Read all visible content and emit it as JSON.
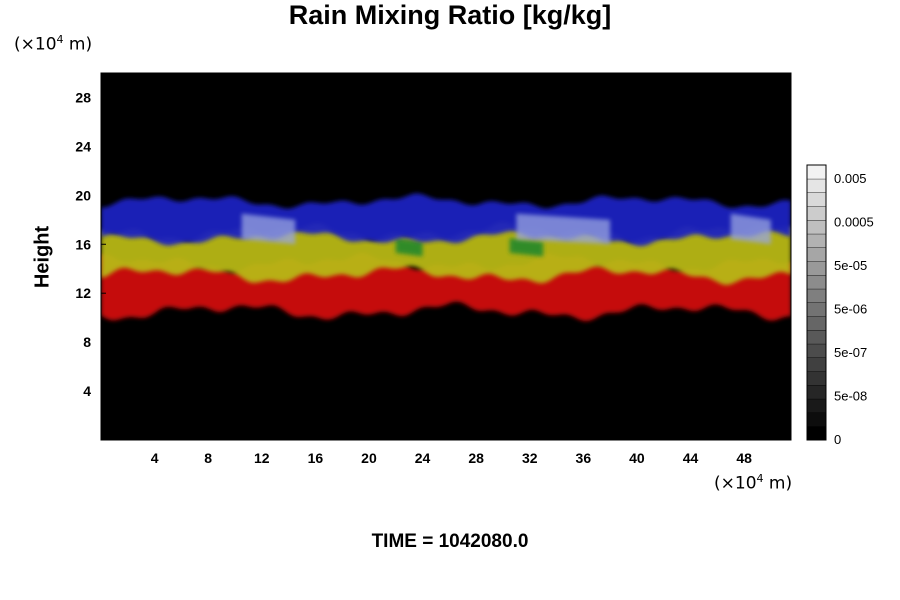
{
  "chart_data": {
    "type": "heatmap",
    "title": "Rain Mixing Ratio [kg/kg]",
    "ylabel": "Height",
    "x_unit": {
      "prefix": "(×10",
      "exp": "4",
      "suffix": " m)"
    },
    "y_unit": {
      "prefix": "(×10",
      "exp": "4",
      "suffix": " m)"
    },
    "xlim": [
      0,
      51.5
    ],
    "ylim": [
      0,
      30
    ],
    "x_ticks": [
      4,
      8,
      12,
      16,
      20,
      24,
      28,
      32,
      36,
      40,
      44,
      48
    ],
    "y_ticks": [
      4,
      8,
      12,
      16,
      20,
      24,
      28
    ],
    "x_tick_labels": [
      "4",
      "8",
      "12",
      "16",
      "20",
      "24",
      "28",
      "32",
      "36",
      "40",
      "44",
      "48"
    ],
    "y_tick_labels": [
      "4",
      "8",
      "12",
      "16",
      "20",
      "24",
      "28"
    ],
    "background_color": "#000000",
    "layers": [
      {
        "name": "red",
        "color": "#d01010",
        "y_range": [
          10.5,
          14.5
        ]
      },
      {
        "name": "yellow",
        "color": "#b8b818",
        "y_range": [
          13.5,
          17.0
        ]
      },
      {
        "name": "green",
        "color": "#2a8a2a",
        "y_range": [
          15.0,
          16.5
        ]
      },
      {
        "name": "blue",
        "color": "#1a22c0",
        "y_range": [
          16.5,
          19.5
        ]
      },
      {
        "name": "light-blue",
        "color": "#9aa6e0",
        "y_range": [
          16.0,
          18.5
        ]
      }
    ],
    "colorbar": {
      "tick_labels": [
        "0.005",
        "0.0005",
        "5e-05",
        "5e-06",
        "5e-07",
        "5e-08",
        "0"
      ],
      "levels": 20,
      "color_min": "#000000",
      "color_max": "#f2f2f2"
    }
  },
  "footer": {
    "time_label": "TIME = 1042080.0"
  }
}
